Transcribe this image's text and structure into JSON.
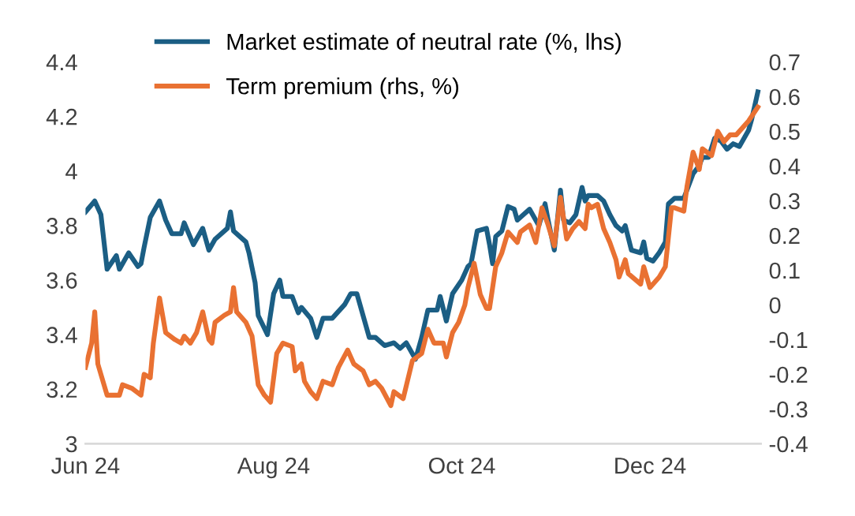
{
  "chart_data": {
    "type": "line",
    "legend": "top",
    "grid": false,
    "line_style": "solid",
    "marker": "none",
    "xlim": [
      "2024-06-01",
      "2025-01-06"
    ],
    "xticks": [
      {
        "value": "2024-06-01",
        "label": "Jun 24"
      },
      {
        "value": "2024-08-01",
        "label": "Aug 24"
      },
      {
        "value": "2024-10-01",
        "label": "Oct 24"
      },
      {
        "value": "2024-12-01",
        "label": "Dec 24"
      }
    ],
    "ylim": [
      3,
      4.4
    ],
    "yticks": [
      3,
      3.2,
      3.4,
      3.6,
      3.8,
      4,
      4.2,
      4.4
    ],
    "y2lim": [
      -0.4,
      0.7
    ],
    "y2ticks": [
      -0.4,
      -0.3,
      -0.2,
      -0.1,
      0,
      0.1,
      0.2,
      0.3,
      0.4,
      0.5,
      0.6,
      0.7
    ],
    "series": [
      {
        "name": "Market estimate of neutral rate (%, lhs)",
        "color": "#1b5e84",
        "x": [
          "2024-06-01",
          "2024-06-04",
          "2024-06-06",
          "2024-06-08",
          "2024-06-11",
          "2024-06-12",
          "2024-06-15",
          "2024-06-18",
          "2024-06-19",
          "2024-06-20",
          "2024-06-22",
          "2024-06-25",
          "2024-06-27",
          "2024-06-29",
          "2024-07-02",
          "2024-07-03",
          "2024-07-06",
          "2024-07-09",
          "2024-07-11",
          "2024-07-13",
          "2024-07-17",
          "2024-07-18",
          "2024-07-19",
          "2024-07-23",
          "2024-07-24",
          "2024-07-26",
          "2024-07-27",
          "2024-07-30",
          "2024-08-01",
          "2024-08-03",
          "2024-08-04",
          "2024-08-07",
          "2024-08-09",
          "2024-08-10",
          "2024-08-13",
          "2024-08-15",
          "2024-08-17",
          "2024-08-20",
          "2024-08-24",
          "2024-08-26",
          "2024-08-28",
          "2024-09-01",
          "2024-09-03",
          "2024-09-06",
          "2024-09-09",
          "2024-09-11",
          "2024-09-13",
          "2024-09-16",
          "2024-09-18",
          "2024-09-20",
          "2024-09-23",
          "2024-09-24",
          "2024-09-26",
          "2024-09-28",
          "2024-10-01",
          "2024-10-03",
          "2024-10-04",
          "2024-10-06",
          "2024-10-09",
          "2024-10-10",
          "2024-10-11",
          "2024-10-12",
          "2024-10-14",
          "2024-10-16",
          "2024-10-18",
          "2024-10-19",
          "2024-10-21",
          "2024-10-23",
          "2024-10-26",
          "2024-10-28",
          "2024-10-29",
          "2024-10-31",
          "2024-11-02",
          "2024-11-03",
          "2024-11-05",
          "2024-11-07",
          "2024-11-09",
          "2024-11-10",
          "2024-11-11",
          "2024-11-14",
          "2024-11-16",
          "2024-11-18",
          "2024-11-20",
          "2024-11-22",
          "2024-11-23",
          "2024-11-25",
          "2024-11-28",
          "2024-11-29",
          "2024-11-30",
          "2024-12-02",
          "2024-12-04",
          "2024-12-06",
          "2024-12-07",
          "2024-12-09",
          "2024-12-12",
          "2024-12-13",
          "2024-12-15",
          "2024-12-17",
          "2024-12-18",
          "2024-12-20",
          "2024-12-22",
          "2024-12-24",
          "2024-12-26",
          "2024-12-28",
          "2024-12-30",
          "2025-01-02",
          "2025-01-03",
          "2025-01-05"
        ],
        "values": [
          3.85,
          3.89,
          3.84,
          3.64,
          3.69,
          3.64,
          3.7,
          3.65,
          3.66,
          3.72,
          3.83,
          3.89,
          3.82,
          3.77,
          3.77,
          3.81,
          3.73,
          3.79,
          3.71,
          3.75,
          3.79,
          3.85,
          3.78,
          3.74,
          3.7,
          3.59,
          3.47,
          3.4,
          3.55,
          3.6,
          3.54,
          3.54,
          3.48,
          3.5,
          3.46,
          3.39,
          3.46,
          3.46,
          3.51,
          3.55,
          3.55,
          3.39,
          3.39,
          3.36,
          3.37,
          3.35,
          3.37,
          3.31,
          3.39,
          3.49,
          3.49,
          3.54,
          3.45,
          3.55,
          3.6,
          3.65,
          3.66,
          3.78,
          3.79,
          3.73,
          3.66,
          3.76,
          3.78,
          3.87,
          3.86,
          3.82,
          3.84,
          3.86,
          3.8,
          3.88,
          3.82,
          3.71,
          3.93,
          3.82,
          3.81,
          3.84,
          3.94,
          3.89,
          3.91,
          3.91,
          3.89,
          3.84,
          3.8,
          3.78,
          3.8,
          3.71,
          3.7,
          3.74,
          3.68,
          3.67,
          3.7,
          3.74,
          3.88,
          3.9,
          3.9,
          3.93,
          3.99,
          4.02,
          4.05,
          4.05,
          4.12,
          4.11,
          4.08,
          4.1,
          4.09,
          4.15,
          4.19,
          4.29
        ]
      },
      {
        "name": "Term premium (rhs, %)",
        "color": "#e97132",
        "axis": "y2",
        "x": [
          "2024-06-01",
          "2024-06-03",
          "2024-06-04",
          "2024-06-05",
          "2024-06-08",
          "2024-06-11",
          "2024-06-12",
          "2024-06-13",
          "2024-06-16",
          "2024-06-19",
          "2024-06-20",
          "2024-06-22",
          "2024-06-23",
          "2024-06-25",
          "2024-06-27",
          "2024-06-30",
          "2024-07-02",
          "2024-07-03",
          "2024-07-05",
          "2024-07-07",
          "2024-07-09",
          "2024-07-11",
          "2024-07-12",
          "2024-07-13",
          "2024-07-16",
          "2024-07-18",
          "2024-07-19",
          "2024-07-20",
          "2024-07-23",
          "2024-07-25",
          "2024-07-27",
          "2024-07-29",
          "2024-07-31",
          "2024-08-02",
          "2024-08-04",
          "2024-08-07",
          "2024-08-08",
          "2024-08-10",
          "2024-08-11",
          "2024-08-13",
          "2024-08-15",
          "2024-08-17",
          "2024-08-20",
          "2024-08-22",
          "2024-08-25",
          "2024-08-27",
          "2024-08-30",
          "2024-09-01",
          "2024-09-03",
          "2024-09-05",
          "2024-09-08",
          "2024-09-09",
          "2024-09-12",
          "2024-09-15",
          "2024-09-18",
          "2024-09-20",
          "2024-09-22",
          "2024-09-25",
          "2024-09-26",
          "2024-09-28",
          "2024-09-30",
          "2024-10-02",
          "2024-10-03",
          "2024-10-05",
          "2024-10-07",
          "2024-10-09",
          "2024-10-10",
          "2024-10-12",
          "2024-10-14",
          "2024-10-16",
          "2024-10-19",
          "2024-10-20",
          "2024-10-23",
          "2024-10-25",
          "2024-10-27",
          "2024-10-29",
          "2024-10-31",
          "2024-11-02",
          "2024-11-04",
          "2024-11-06",
          "2024-11-08",
          "2024-11-10",
          "2024-11-11",
          "2024-11-12",
          "2024-11-14",
          "2024-11-16",
          "2024-11-18",
          "2024-11-20",
          "2024-11-21",
          "2024-11-23",
          "2024-11-24",
          "2024-11-28",
          "2024-11-29",
          "2024-12-01",
          "2024-12-04",
          "2024-12-06",
          "2024-12-08",
          "2024-12-09",
          "2024-12-12",
          "2024-12-13",
          "2024-12-15",
          "2024-12-17",
          "2024-12-18",
          "2024-12-21",
          "2024-12-23",
          "2024-12-25",
          "2024-12-27",
          "2024-12-29",
          "2025-01-02",
          "2025-01-05"
        ],
        "values": [
          -0.18,
          -0.11,
          -0.02,
          -0.17,
          -0.26,
          -0.26,
          -0.26,
          -0.23,
          -0.24,
          -0.26,
          -0.2,
          -0.21,
          -0.11,
          0.02,
          -0.08,
          -0.1,
          -0.11,
          -0.09,
          -0.11,
          -0.08,
          -0.02,
          -0.1,
          -0.11,
          -0.05,
          -0.03,
          -0.02,
          0.05,
          -0.02,
          -0.05,
          -0.09,
          -0.23,
          -0.26,
          -0.28,
          -0.14,
          -0.11,
          -0.12,
          -0.19,
          -0.17,
          -0.22,
          -0.25,
          -0.27,
          -0.22,
          -0.23,
          -0.18,
          -0.13,
          -0.17,
          -0.19,
          -0.23,
          -0.22,
          -0.24,
          -0.29,
          -0.25,
          -0.27,
          -0.16,
          -0.14,
          -0.07,
          -0.11,
          -0.11,
          -0.15,
          -0.08,
          -0.05,
          0.0,
          0.05,
          0.12,
          0.03,
          -0.01,
          -0.01,
          0.11,
          0.15,
          0.21,
          0.18,
          0.21,
          0.23,
          0.18,
          0.28,
          0.23,
          0.17,
          0.31,
          0.19,
          0.22,
          0.24,
          0.22,
          0.29,
          0.28,
          0.29,
          0.22,
          0.18,
          0.13,
          0.08,
          0.13,
          0.09,
          0.06,
          0.11,
          0.05,
          0.08,
          0.11,
          0.28,
          0.28,
          0.27,
          0.34,
          0.44,
          0.39,
          0.45,
          0.43,
          0.5,
          0.47,
          0.49,
          0.49,
          0.53,
          0.57
        ]
      }
    ]
  }
}
